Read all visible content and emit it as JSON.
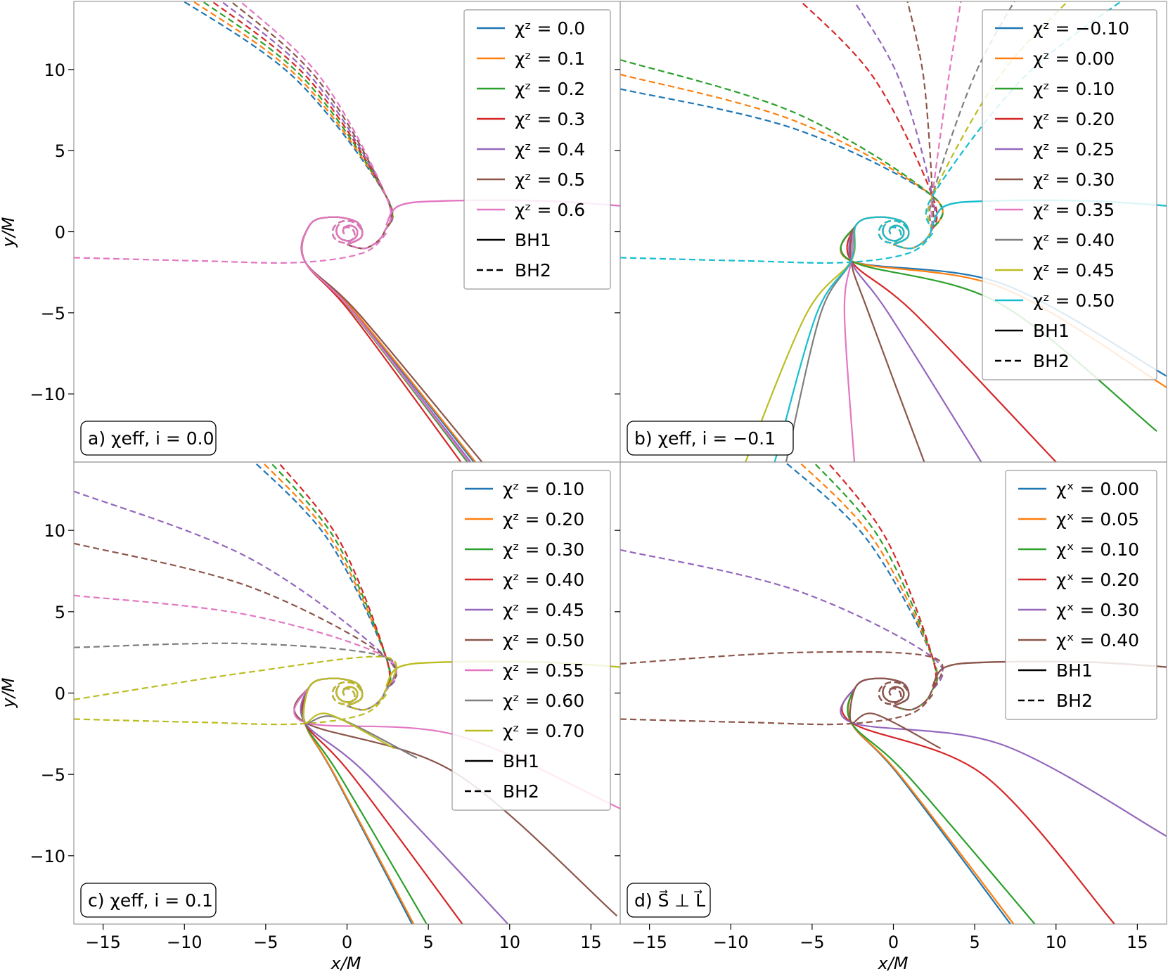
{
  "figure": {
    "ylabel": "y/M",
    "xlabel": "x/M",
    "xticks": [
      -15,
      -10,
      -5,
      0,
      5,
      10,
      15
    ],
    "yticks": [
      -10,
      -5,
      0,
      5,
      10
    ],
    "xtick_labels": [
      "−15",
      "−10",
      "−5",
      "0",
      "5",
      "10",
      "15"
    ],
    "ytick_labels": [
      "−10",
      "−5",
      "0",
      "5",
      "10"
    ]
  },
  "colors": {
    "tab_blue": "#1f77b4",
    "tab_orange": "#ff7f0e",
    "tab_green": "#2ca02c",
    "tab_red": "#d62728",
    "tab_purple": "#9467bd",
    "tab_brown": "#8c564b",
    "tab_pink": "#e377c2",
    "tab_gray": "#7f7f7f",
    "tab_olive": "#bcbd22",
    "tab_cyan": "#17becf"
  },
  "chart_data": [
    {
      "type": "line",
      "panel_label": "a) χeff, i = 0.0",
      "xlim": [
        -16.8,
        16.8
      ],
      "ylim": [
        -14.2,
        14.2
      ],
      "grid": false,
      "legend_position": "top-right",
      "legend": [
        "χᶻ = 0.0",
        "χᶻ = 0.1",
        "χᶻ = 0.2",
        "χᶻ = 0.3",
        "χᶻ = 0.4",
        "χᶻ = 0.5",
        "χᶻ = 0.6",
        "BH1",
        "BH2"
      ],
      "series": [
        {
          "name": "χᶻ = 0.0",
          "color": "#1f77b4",
          "x_end": 7.8,
          "y_end": -14.2,
          "wide": 0.0
        },
        {
          "name": "χᶻ = 0.1",
          "color": "#ff7f0e",
          "x_end": 7.9,
          "y_end": -14.2,
          "wide": 0.0
        },
        {
          "name": "χᶻ = 0.2",
          "color": "#2ca02c",
          "x_end": 7.4,
          "y_end": -14.2,
          "wide": 0.0
        },
        {
          "name": "χᶻ = 0.3",
          "color": "#d62728",
          "x_end": 7.0,
          "y_end": -14.2,
          "wide": 0.0
        },
        {
          "name": "χᶻ = 0.4",
          "color": "#9467bd",
          "x_end": 7.6,
          "y_end": -14.2,
          "wide": 0.0
        },
        {
          "name": "χᶻ = 0.5",
          "color": "#8c564b",
          "x_end": 8.3,
          "y_end": -14.2,
          "wide": 0.0
        },
        {
          "name": "χᶻ = 0.6",
          "color": "#e377c2",
          "x_end": 7.5,
          "y_end": -14.2,
          "wide": 0.0
        }
      ]
    },
    {
      "type": "line",
      "panel_label": "b) χeff, i = −0.1",
      "xlim": [
        -16.8,
        16.8
      ],
      "ylim": [
        -14.2,
        14.2
      ],
      "grid": false,
      "legend_position": "top-right",
      "legend": [
        "χᶻ = −0.10",
        "χᶻ = 0.00",
        "χᶻ = 0.10",
        "χᶻ = 0.20",
        "χᶻ = 0.25",
        "χᶻ = 0.30",
        "χᶻ = 0.35",
        "χᶻ = 0.40",
        "χᶻ = 0.45",
        "χᶻ = 0.50",
        "BH1",
        "BH2"
      ],
      "series": [
        {
          "name": "χᶻ = −0.10",
          "color": "#1f77b4",
          "x_end": 16.8,
          "y_end": -8.9
        },
        {
          "name": "χᶻ = 0.00",
          "color": "#ff7f0e",
          "x_end": 16.8,
          "y_end": -9.6
        },
        {
          "name": "χᶻ = 0.10",
          "color": "#2ca02c",
          "x_end": 16.2,
          "y_end": -12.3
        },
        {
          "name": "χᶻ = 0.20",
          "color": "#d62728",
          "x_end": 10.0,
          "y_end": -14.2
        },
        {
          "name": "χᶻ = 0.25",
          "color": "#9467bd",
          "x_end": 5.4,
          "y_end": -14.2
        },
        {
          "name": "χᶻ = 0.30",
          "color": "#8c564b",
          "x_end": 1.9,
          "y_end": -14.2
        },
        {
          "name": "χᶻ = 0.35",
          "color": "#e377c2",
          "x_end": -2.4,
          "y_end": -14.2
        },
        {
          "name": "χᶻ = 0.40",
          "color": "#7f7f7f",
          "x_end": -6.6,
          "y_end": -14.2
        },
        {
          "name": "χᶻ = 0.45",
          "color": "#bcbd22",
          "x_end": -9.1,
          "y_end": -14.2
        },
        {
          "name": "χᶻ = 0.50",
          "color": "#17becf",
          "x_end": -7.3,
          "y_end": -14.2
        }
      ]
    },
    {
      "type": "line",
      "panel_label": "c) χeff, i = 0.1",
      "xlim": [
        -16.8,
        16.8
      ],
      "ylim": [
        -14.2,
        14.2
      ],
      "grid": false,
      "legend_position": "top-right",
      "legend": [
        "χᶻ = 0.10",
        "χᶻ = 0.20",
        "χᶻ = 0.30",
        "χᶻ = 0.40",
        "χᶻ = 0.45",
        "χᶻ = 0.50",
        "χᶻ = 0.55",
        "χᶻ = 0.60",
        "χᶻ = 0.70",
        "BH1",
        "BH2"
      ],
      "series": [
        {
          "name": "χᶻ = 0.10",
          "color": "#1f77b4",
          "x_end": 4.0,
          "y_end": -14.2
        },
        {
          "name": "χᶻ = 0.20",
          "color": "#ff7f0e",
          "x_end": 4.1,
          "y_end": -14.2
        },
        {
          "name": "χᶻ = 0.30",
          "color": "#2ca02c",
          "x_end": 4.9,
          "y_end": -14.2
        },
        {
          "name": "χᶻ = 0.40",
          "color": "#d62728",
          "x_end": 7.1,
          "y_end": -14.2
        },
        {
          "name": "χᶻ = 0.45",
          "color": "#9467bd",
          "x_end": 9.9,
          "y_end": -14.2
        },
        {
          "name": "χᶻ = 0.50",
          "color": "#8c564b",
          "x_end": 16.6,
          "y_end": -13.7
        },
        {
          "name": "χᶻ = 0.55",
          "color": "#e377c2",
          "x_end": 16.8,
          "y_end": -7.1
        },
        {
          "name": "χᶻ = 0.60",
          "color": "#7f7f7f",
          "x_end": 4.3,
          "y_end": -4.0
        },
        {
          "name": "χᶻ = 0.70",
          "color": "#bcbd22",
          "x_end": 2.9,
          "y_end": -3.4
        }
      ]
    },
    {
      "type": "line",
      "panel_label": "d) S⃗ ⊥ L⃗",
      "xlim": [
        -16.8,
        16.8
      ],
      "ylim": [
        -14.2,
        14.2
      ],
      "grid": false,
      "legend_position": "top-right",
      "legend": [
        "χˣ = 0.00",
        "χˣ = 0.05",
        "χˣ = 0.10",
        "χˣ = 0.20",
        "χˣ = 0.30",
        "χˣ = 0.40",
        "BH1",
        "BH2"
      ],
      "series": [
        {
          "name": "χˣ = 0.00",
          "color": "#1f77b4",
          "x_end": 7.2,
          "y_end": -14.2
        },
        {
          "name": "χˣ = 0.05",
          "color": "#ff7f0e",
          "x_end": 7.4,
          "y_end": -14.2
        },
        {
          "name": "χˣ = 0.10",
          "color": "#2ca02c",
          "x_end": 8.7,
          "y_end": -14.2
        },
        {
          "name": "χˣ = 0.20",
          "color": "#d62728",
          "x_end": 13.6,
          "y_end": -14.2
        },
        {
          "name": "χˣ = 0.30",
          "color": "#9467bd",
          "x_end": 16.8,
          "y_end": -8.8
        },
        {
          "name": "χˣ = 0.40",
          "color": "#8c564b",
          "x_end": 2.9,
          "y_end": -3.4
        }
      ]
    }
  ]
}
